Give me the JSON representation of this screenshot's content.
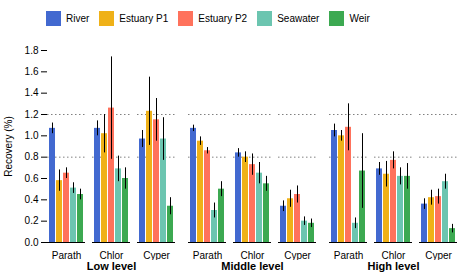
{
  "chart_data": [
    {
      "type": "bar",
      "xlabel": "Low level",
      "ylabel": "Recovery (%)",
      "categories": [
        "Parath",
        "Chlor",
        "Cyper"
      ],
      "series": [
        {
          "name": "River",
          "values": [
            1.07,
            1.07,
            0.97
          ],
          "errors": [
            0.05,
            0.07,
            0.08
          ]
        },
        {
          "name": "Estuary P1",
          "values": [
            0.58,
            1.02,
            1.23
          ],
          "errors": [
            0.1,
            0.18,
            0.32
          ]
        },
        {
          "name": "Estuary P2",
          "values": [
            0.65,
            1.26,
            1.15
          ],
          "errors": [
            0.05,
            0.48,
            0.2
          ]
        },
        {
          "name": "Seawater",
          "values": [
            0.51,
            0.69,
            0.97
          ],
          "errors": [
            0.05,
            0.12,
            0.2
          ]
        },
        {
          "name": "Weir",
          "values": [
            0.45,
            0.6,
            0.34
          ],
          "errors": [
            0.05,
            0.1,
            0.08
          ]
        }
      ],
      "ylim": [
        0,
        1.8
      ],
      "yticks": [
        {
          "value": 0,
          "label": "0.0"
        },
        0.2,
        0.4,
        0.6,
        0.8,
        {
          "value": 1,
          "label": "1.0"
        },
        1.2,
        1.4,
        1.6,
        1.8
      ],
      "hlines": [
        0.8,
        1.2
      ]
    },
    {
      "type": "bar",
      "xlabel": "Middle level",
      "categories": [
        "Parath",
        "Chlor",
        "Cyper"
      ],
      "series": [
        {
          "name": "River",
          "values": [
            1.07,
            0.84,
            0.34
          ],
          "errors": [
            0.03,
            0.04,
            0.05
          ]
        },
        {
          "name": "Estuary P1",
          "values": [
            0.95,
            0.8,
            0.41
          ],
          "errors": [
            0.04,
            0.05,
            0.08
          ]
        },
        {
          "name": "Estuary P2",
          "values": [
            0.86,
            0.73,
            0.45
          ],
          "errors": [
            0.03,
            0.1,
            0.08
          ]
        },
        {
          "name": "Seawater",
          "values": [
            0.3,
            0.65,
            0.2
          ],
          "errors": [
            0.07,
            0.1,
            0.04
          ]
        },
        {
          "name": "Weir",
          "values": [
            0.5,
            0.55,
            0.18
          ],
          "errors": [
            0.07,
            0.07,
            0.04
          ]
        }
      ],
      "ylim": [
        0,
        1.8
      ],
      "yticks": [
        {
          "value": 0,
          "label": "0.0"
        },
        0.2,
        0.4,
        0.6,
        0.8,
        {
          "value": 1,
          "label": "1.0"
        },
        1.2,
        1.4,
        1.6,
        1.8
      ],
      "hlines": [
        0.8,
        1.2
      ],
      "tick_labels": "x"
    },
    {
      "type": "bar",
      "xlabel": "High level",
      "categories": [
        "Parath",
        "Chlor",
        "Cyper"
      ],
      "series": [
        {
          "name": "River",
          "values": [
            1.05,
            0.69,
            0.36
          ],
          "errors": [
            0.06,
            0.06,
            0.05
          ]
        },
        {
          "name": "Estuary P1",
          "values": [
            1.0,
            0.64,
            0.42
          ],
          "errors": [
            0.05,
            0.12,
            0.07
          ]
        },
        {
          "name": "Estuary P2",
          "values": [
            1.08,
            0.77,
            0.43
          ],
          "errors": [
            0.22,
            0.08,
            0.07
          ]
        },
        {
          "name": "Seawater",
          "values": [
            0.18,
            0.62,
            0.57
          ],
          "errors": [
            0.05,
            0.08,
            0.07
          ]
        },
        {
          "name": "Weir",
          "values": [
            0.67,
            0.62,
            0.13
          ],
          "errors": [
            0.35,
            0.12,
            0.04
          ]
        }
      ],
      "ylim": [
        0,
        1.8
      ],
      "yticks": [
        {
          "value": 0,
          "label": "0.0"
        },
        0.2,
        0.4,
        0.6,
        0.8,
        {
          "value": 1,
          "label": "1.0"
        },
        1.2,
        1.4,
        1.6,
        1.8
      ],
      "hlines": [
        0.8,
        1.2
      ],
      "tick_labels": "x",
      "legend": "top"
    }
  ]
}
